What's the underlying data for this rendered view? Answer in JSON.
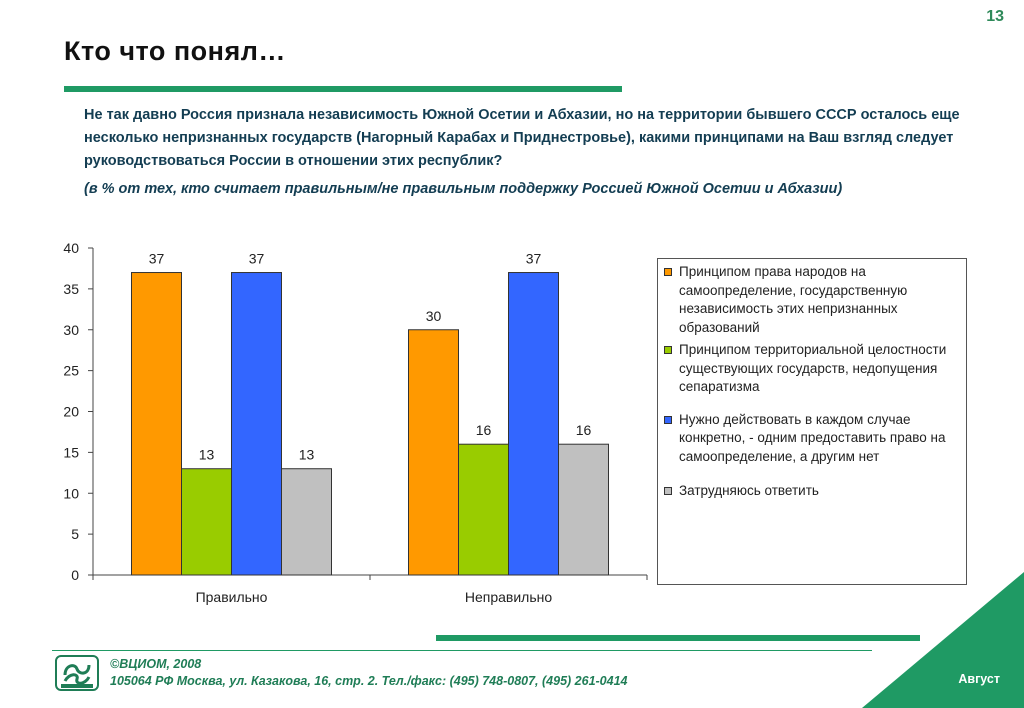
{
  "page_number": "13",
  "title": "Кто что понял…",
  "question": "Не так давно Россия признала независимость Южной Осетии и Абхазии, но на территории бывшего СССР осталось еще несколько непризнанных государств (Нагорный Карабах и Приднестровье), какими принципами на Ваш взгляд следует руководствоваться России в отношении этих республик?",
  "question_note": "(в % от тех, кто считает правильным/не правильным поддержку Россией Южной Осетии и Абхазии)",
  "chart_data": {
    "type": "bar",
    "categories": [
      "Правильно",
      "Неправильно"
    ],
    "ylim": [
      0,
      40
    ],
    "yticks": [
      0,
      5,
      10,
      15,
      20,
      25,
      30,
      35,
      40
    ],
    "grid": false,
    "legend_position": "right",
    "series": [
      {
        "name": "Принципом права народов на самоопределение, государственную независимость этих непризнанных образований",
        "color": "#ff9900",
        "values": [
          37,
          30
        ]
      },
      {
        "name": "Принципом территориальной целостности существующих государств, недопущения сепаратизма",
        "color": "#99cc00",
        "values": [
          13,
          16
        ]
      },
      {
        "name": "Нужно действовать в каждом случае конкретно, - одним предоставить право на самоопределение, а другим нет",
        "color": "#3366ff",
        "values": [
          37,
          37
        ]
      },
      {
        "name": "Затрудняюсь ответить",
        "color": "#c0c0c0",
        "values": [
          13,
          16
        ]
      }
    ]
  },
  "footer": {
    "copyright": "©ВЦИОМ, 2008",
    "address": "105064 РФ Москва, ул. Казакова, 16, стр. 2. Тел./факс: (495) 748-0807, (495) 261-0414",
    "month": "Август",
    "accent_color": "#1f9a64"
  }
}
